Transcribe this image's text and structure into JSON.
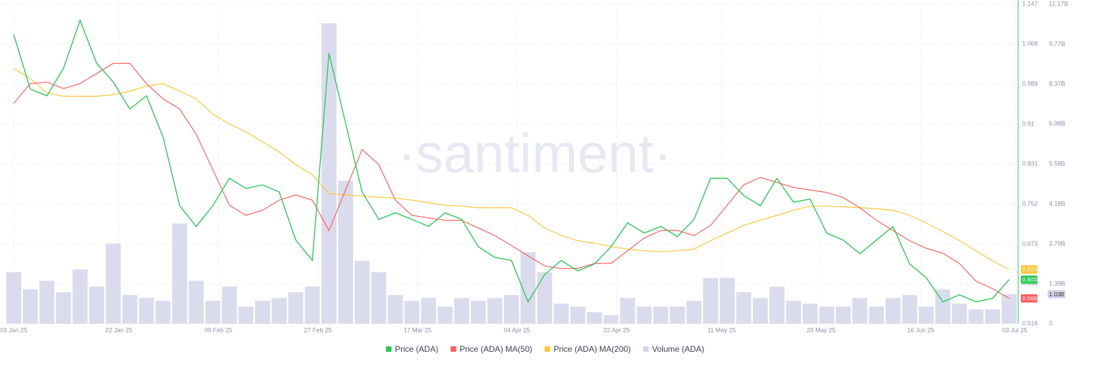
{
  "chart_data": {
    "type": "line",
    "watermark": "·santiment·",
    "x": [
      "2025-01-03",
      "2025-01-06",
      "2025-01-09",
      "2025-01-12",
      "2025-01-15",
      "2025-01-18",
      "2025-01-21",
      "2025-01-24",
      "2025-01-27",
      "2025-01-30",
      "2025-02-02",
      "2025-02-05",
      "2025-02-08",
      "2025-02-11",
      "2025-02-14",
      "2025-02-17",
      "2025-02-20",
      "2025-02-23",
      "2025-02-26",
      "2025-03-01",
      "2025-03-04",
      "2025-03-07",
      "2025-03-10",
      "2025-03-13",
      "2025-03-16",
      "2025-03-19",
      "2025-03-22",
      "2025-03-25",
      "2025-03-28",
      "2025-03-31",
      "2025-04-03",
      "2025-04-06",
      "2025-04-09",
      "2025-04-12",
      "2025-04-15",
      "2025-04-18",
      "2025-04-21",
      "2025-04-24",
      "2025-04-27",
      "2025-04-30",
      "2025-05-03",
      "2025-05-06",
      "2025-05-09",
      "2025-05-12",
      "2025-05-15",
      "2025-05-18",
      "2025-05-21",
      "2025-05-24",
      "2025-05-27",
      "2025-05-30",
      "2025-06-02",
      "2025-06-05",
      "2025-06-08",
      "2025-06-11",
      "2025-06-14",
      "2025-06-17",
      "2025-06-20",
      "2025-06-23",
      "2025-06-26",
      "2025-06-29",
      "2025-07-02"
    ],
    "xticks": [
      {
        "value": "2025-01-03",
        "label": "03 Jan 25"
      },
      {
        "value": "2025-01-22",
        "label": "22 Jan 25"
      },
      {
        "value": "2025-02-09",
        "label": "09 Feb 25"
      },
      {
        "value": "2025-02-27",
        "label": "27 Feb 25"
      },
      {
        "value": "2025-03-17",
        "label": "17 Mar 25"
      },
      {
        "value": "2025-04-04",
        "label": "04 Apr 25"
      },
      {
        "value": "2025-04-22",
        "label": "22 Apr 25"
      },
      {
        "value": "2025-05-11",
        "label": "11 May 25"
      },
      {
        "value": "2025-05-29",
        "label": "29 May 25"
      },
      {
        "value": "2025-06-16",
        "label": "16 Jun 25"
      },
      {
        "value": "2025-07-03",
        "label": "03 Jul 25"
      }
    ],
    "ylim": [
      0.516,
      1.147
    ],
    "yticks": [
      0.516,
      0.595,
      0.673,
      0.752,
      0.831,
      0.91,
      0.989,
      1.068,
      1.147
    ],
    "y2lim": [
      0,
      11.17
    ],
    "y2ticks": [
      0,
      {
        "value": 1.39,
        "label": "1.39B"
      },
      {
        "value": 2.79,
        "label": "2.79B"
      },
      {
        "value": 4.18,
        "label": "4.18B"
      },
      {
        "value": 5.58,
        "label": "5.58B"
      },
      {
        "value": 6.98,
        "label": "6.98B"
      },
      {
        "value": 8.37,
        "label": "8.37B"
      },
      {
        "value": 9.77,
        "label": "9.77B"
      },
      {
        "value": 11.17,
        "label": "11.17B"
      }
    ],
    "grid": true,
    "series": [
      {
        "name": "Price (ADA)",
        "color": "#26c953",
        "end_label": "0.603",
        "values": [
          1.087,
          0.979,
          0.966,
          1.02,
          1.115,
          1.03,
          0.993,
          0.94,
          0.966,
          0.885,
          0.749,
          0.708,
          0.749,
          0.803,
          0.783,
          0.79,
          0.776,
          0.681,
          0.641,
          1.05,
          0.912,
          0.776,
          0.722,
          0.735,
          0.722,
          0.708,
          0.735,
          0.722,
          0.668,
          0.647,
          0.641,
          0.559,
          0.613,
          0.641,
          0.62,
          0.634,
          0.668,
          0.715,
          0.695,
          0.708,
          0.688,
          0.722,
          0.803,
          0.803,
          0.769,
          0.749,
          0.803,
          0.756,
          0.762,
          0.695,
          0.681,
          0.654,
          0.681,
          0.708,
          0.634,
          0.607,
          0.559,
          0.573,
          0.559,
          0.566,
          0.603
        ]
      },
      {
        "name": "Price (ADA) MA(50)",
        "color": "#ff5b5b",
        "end_label": "0.566",
        "values": [
          0.951,
          0.99,
          0.993,
          0.98,
          0.99,
          1.01,
          1.03,
          1.03,
          0.99,
          0.96,
          0.94,
          0.89,
          0.82,
          0.75,
          0.73,
          0.74,
          0.76,
          0.77,
          0.76,
          0.7,
          0.78,
          0.86,
          0.83,
          0.76,
          0.73,
          0.725,
          0.72,
          0.72,
          0.705,
          0.69,
          0.67,
          0.65,
          0.63,
          0.625,
          0.625,
          0.635,
          0.635,
          0.66,
          0.685,
          0.7,
          0.7,
          0.69,
          0.71,
          0.75,
          0.79,
          0.805,
          0.795,
          0.785,
          0.78,
          0.775,
          0.765,
          0.745,
          0.72,
          0.7,
          0.68,
          0.665,
          0.655,
          0.635,
          0.6,
          0.585,
          0.566
        ]
      },
      {
        "name": "Price (ADA) MA(200)",
        "color": "#ffc532",
        "end_label": "0.623",
        "values": [
          1.02,
          1.0,
          0.972,
          0.965,
          0.965,
          0.965,
          0.968,
          0.975,
          0.985,
          0.99,
          0.975,
          0.96,
          0.93,
          0.91,
          0.895,
          0.875,
          0.855,
          0.83,
          0.81,
          0.773,
          0.77,
          0.768,
          0.766,
          0.764,
          0.76,
          0.755,
          0.75,
          0.748,
          0.745,
          0.745,
          0.745,
          0.73,
          0.705,
          0.69,
          0.68,
          0.675,
          0.668,
          0.663,
          0.66,
          0.658,
          0.66,
          0.663,
          0.68,
          0.695,
          0.71,
          0.72,
          0.73,
          0.74,
          0.748,
          0.748,
          0.747,
          0.745,
          0.743,
          0.74,
          0.73,
          0.715,
          0.698,
          0.68,
          0.66,
          0.64,
          0.623
        ]
      },
      {
        "name": "Volume (ADA)",
        "color": "#d3d6ea",
        "axis": "y2",
        "end_label": "1.03B",
        "values": [
          1.8,
          1.2,
          1.5,
          1.1,
          1.9,
          1.3,
          2.8,
          1.0,
          0.9,
          0.8,
          3.5,
          1.5,
          0.8,
          1.3,
          0.6,
          0.8,
          0.9,
          1.1,
          1.3,
          10.5,
          5.0,
          2.2,
          1.8,
          1.0,
          0.8,
          0.9,
          0.6,
          0.9,
          0.8,
          0.9,
          1.0,
          2.5,
          1.8,
          0.7,
          0.6,
          0.4,
          0.3,
          0.9,
          0.6,
          0.6,
          0.6,
          0.8,
          1.6,
          1.6,
          1.1,
          0.9,
          1.3,
          0.8,
          0.7,
          0.6,
          0.6,
          0.9,
          0.6,
          0.9,
          1.0,
          0.6,
          1.2,
          0.7,
          0.5,
          0.5,
          1.03
        ]
      }
    ]
  }
}
